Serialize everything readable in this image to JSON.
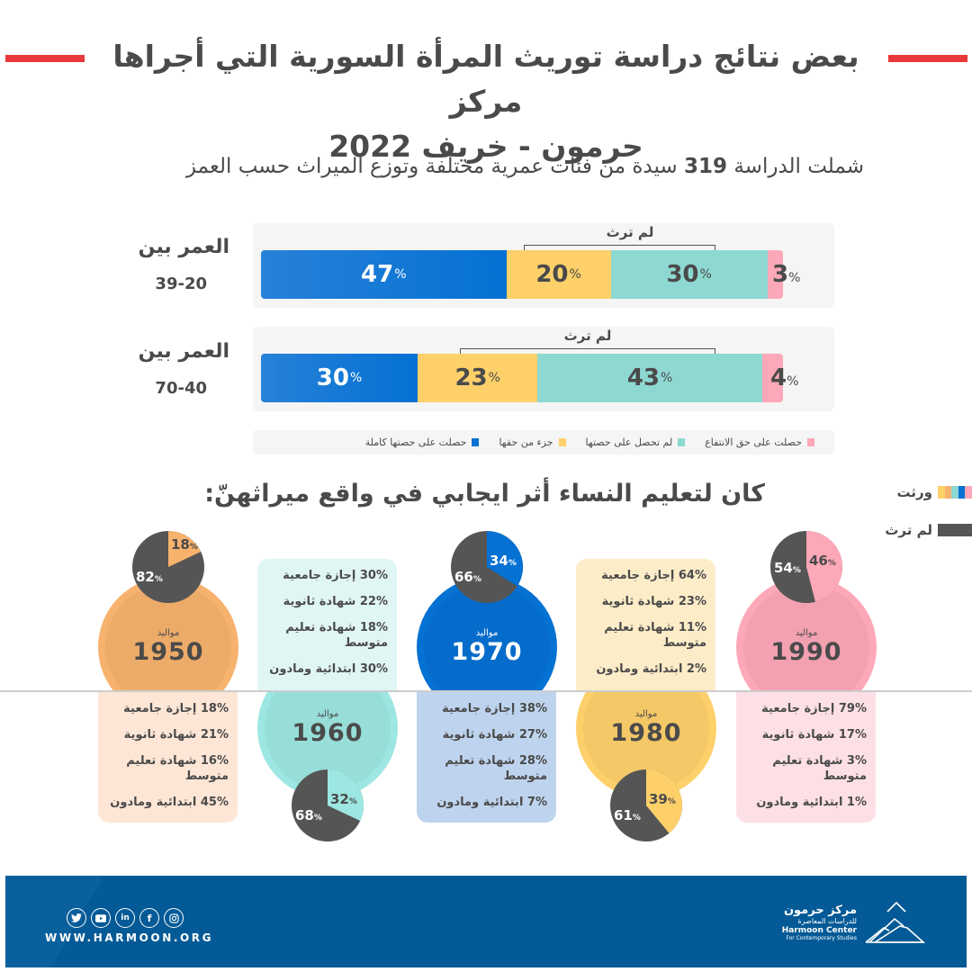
{
  "header": {
    "title_line1": "بعض نتائج دراسة توريث المرأة السورية التي أجراها مركز",
    "title_line2": "حرمون - خريف  2022",
    "subtitle_pre": "شملت الدراسة",
    "subtitle_number": "319",
    "subtitle_post": "سيدة من فئات عمرية مختلفة وتوزع الميراث حسب العمز",
    "accent_color": "#e8383a"
  },
  "age_groups": [
    {
      "label": "العمر بين",
      "range": "39-20",
      "bracket_label": "لم ترث",
      "segments": [
        {
          "key": "full",
          "value": "47",
          "color": "#0571d3"
        },
        {
          "key": "part",
          "value": "20",
          "color": "#fed06a"
        },
        {
          "key": "none",
          "value": "30",
          "color": "#8ed8d2"
        },
        {
          "key": "usufruct",
          "value": "3",
          "color": "#fda8b8"
        }
      ]
    },
    {
      "label": "العمر بين",
      "range": "70-40",
      "bracket_label": "لم ترث",
      "segments": [
        {
          "key": "full",
          "value": "30",
          "color": "#0571d3"
        },
        {
          "key": "part",
          "value": "23",
          "color": "#fed06a"
        },
        {
          "key": "none",
          "value": "43",
          "color": "#8ed8d2"
        },
        {
          "key": "usufruct",
          "value": "4",
          "color": "#fda8b8"
        }
      ]
    }
  ],
  "percent_sign": "%",
  "legend": [
    {
      "label": "حصلت على حصتها كاملة",
      "color": "#0571d3"
    },
    {
      "label": "جزء من حقها",
      "color": "#fed06a"
    },
    {
      "label": "لم تحصل على حصتها",
      "color": "#8ed8d2"
    },
    {
      "label": "حصلت على حق الانتفاع",
      "color": "#fda8b8"
    }
  ],
  "education_section": {
    "title": "كان لتعليم النساء أثر ايجابي في واقع ميراثهنّ:",
    "side_legend": {
      "inherited": "ورثت",
      "not_inherited": "لم ترث",
      "inherited_colors": [
        "#fda8b8",
        "#0571d3",
        "#8ed8d2",
        "#f7b26e",
        "#fed06a"
      ],
      "not_inherited_color": "#555555"
    },
    "born_label": "مواليد",
    "cohorts": [
      {
        "year": "1950",
        "color": "#f7b26e",
        "box_color": "#fde6d6",
        "inherited": "18",
        "not_inherited": "82",
        "rows": [
          "18% إجازة جامعية",
          "21% شهادة ثانوية",
          "16% شهادة تعليم متوسط",
          "45% ابتدائية ومادون"
        ]
      },
      {
        "year": "1960",
        "color": "#9de7e2",
        "box_color": "#e0f6f4",
        "inherited": "32",
        "not_inherited": "68",
        "rows": [
          "30% إجازة جامعية",
          "22% شهادة ثانوية",
          "18% شهادة تعليم متوسط",
          "30% ابتدائية ومادون"
        ]
      },
      {
        "year": "1970",
        "color": "#0571d3",
        "box_color": "#bed4ee",
        "inherited": "34",
        "not_inherited": "66",
        "rows": [
          "38% إجازة جامعية",
          "27% شهادة ثانوية",
          "28% شهادة تعليم متوسط",
          "7% ابتدائية ومادون"
        ]
      },
      {
        "year": "1980",
        "color": "#fed06a",
        "box_color": "#fdecc8",
        "inherited": "39",
        "not_inherited": "61",
        "rows": [
          "64% إجازة جامعية",
          "23% شهادة ثانوية",
          "11% شهادة تعليم متوسط",
          "2% ابتدائية ومادون"
        ]
      },
      {
        "year": "1990",
        "color": "#fda8b8",
        "box_color": "#fde0e5",
        "inherited": "46",
        "not_inherited": "54",
        "rows": [
          "79% إجازة جامعية",
          "17% شهادة ثانوية",
          "3% شهادة تعليم متوسط",
          "1% ابتدائية ومادون"
        ]
      }
    ]
  },
  "footer": {
    "website": "WWW.HARMOON.ORG",
    "social_icons": [
      "twitter-icon",
      "youtube-icon",
      "linkedin-icon",
      "facebook-icon",
      "instagram-icon"
    ],
    "logo_ar_line1": "مركز حرمون",
    "logo_ar_line2": "للدراسات المعاصرة",
    "logo_en_line1": "Harmoon Center",
    "logo_en_line2": "For Contemporary Studies",
    "background_color": "#045a96"
  }
}
